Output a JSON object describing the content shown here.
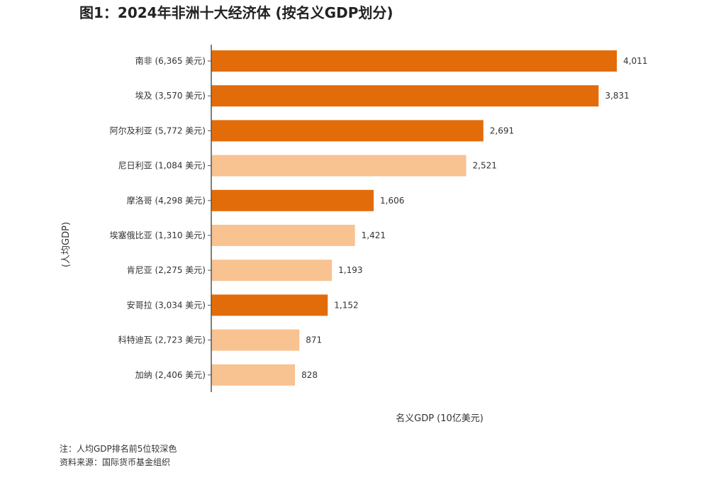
{
  "title": "图1：2024年非洲十大经济体 (按名义GDP划分)",
  "chart_data": {
    "type": "bar",
    "orientation": "horizontal",
    "title": "图1：2024年非洲十大经济体 (按名义GDP划分)",
    "xlabel": "名义GDP (10亿美元)",
    "ylabel": "(人均GDP)",
    "categories": [
      "南非 (6,365 美元)",
      "埃及 (3,570 美元)",
      "阿尔及利亚 (5,772 美元)",
      "尼日利亚 (1,084 美元)",
      "摩洛哥 (4,298 美元)",
      "埃塞俄比亚 (1,310 美元)",
      "肯尼亚 (2,275 美元)",
      "安哥拉 (3,034 美元)",
      "科特迪瓦 (2,723 美元)",
      "加纳 (2,406 美元)"
    ],
    "values": [
      401.1,
      383.1,
      269.1,
      252.1,
      160.6,
      142.1,
      119.3,
      115.2,
      87.1,
      82.8
    ],
    "value_labels": [
      "4,011",
      "3,831",
      "2,691",
      "2,521",
      "1,606",
      "1,421",
      "1,193",
      "1,152",
      "871",
      "828"
    ],
    "top5_per_capita": [
      true,
      true,
      true,
      false,
      true,
      false,
      false,
      true,
      false,
      false
    ],
    "xlim": [
      0,
      401.1
    ],
    "colors": {
      "top5": "#E36C0A",
      "other": "#F9C291"
    },
    "grid": false,
    "legend": "none"
  },
  "notes": {
    "note": "注：人均GDP排名前5位较深色",
    "source": "资料来源：国际货币基金组织"
  }
}
